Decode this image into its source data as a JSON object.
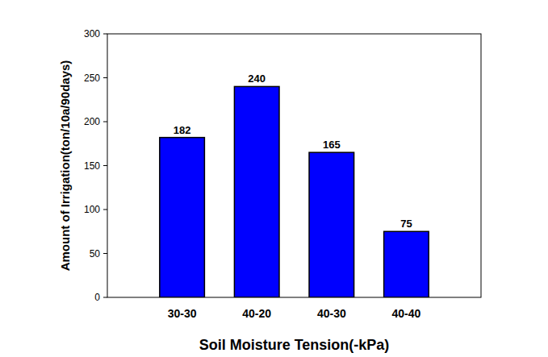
{
  "chart_data": {
    "type": "bar",
    "x_label": "Soil Moisture Tension(-kPa)",
    "y_label": "Amount of Irrigation(ton/10a/90days)",
    "categories": [
      "30-30",
      "40-20",
      "40-30",
      "40-40"
    ],
    "values": [
      182,
      240,
      165,
      75
    ],
    "color": "#0000ff",
    "ylim": [
      0,
      300
    ],
    "yticks": [
      0,
      50,
      100,
      150,
      200,
      250,
      300
    ],
    "grid": false,
    "data_labels": true
  }
}
